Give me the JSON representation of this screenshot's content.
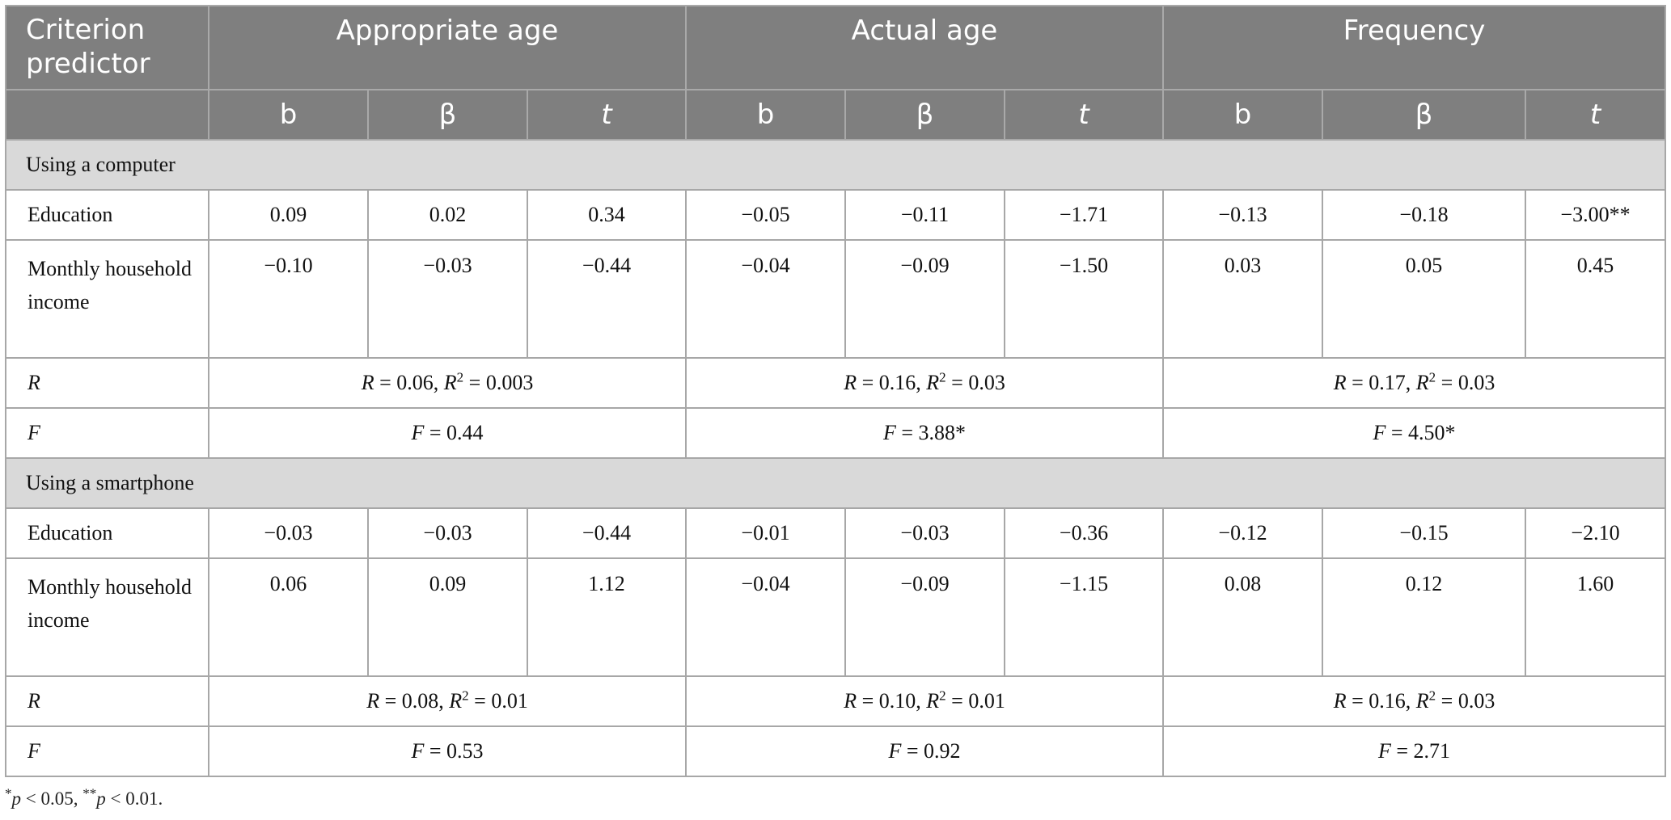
{
  "header": {
    "criterion_predictor": "Criterion predictor",
    "groups": [
      "Appropriate age",
      "Actual age",
      "Frequency"
    ],
    "subcols": [
      "b",
      "β",
      "t"
    ]
  },
  "sections": [
    {
      "title": "Using a computer",
      "rows": [
        {
          "label": "Education",
          "values": [
            "0.09",
            "0.02",
            "0.34",
            "−0.05",
            "−0.11",
            "−1.71",
            "−0.13",
            "−0.18",
            "−3.00**"
          ]
        },
        {
          "label": "Monthly household income",
          "values": [
            "−0.10",
            "−0.03",
            "−0.44",
            "−0.04",
            "−0.09",
            "−1.50",
            "0.03",
            "0.05",
            "0.45"
          ]
        }
      ],
      "R": {
        "label": "R",
        "values": [
          {
            "r": "0.06",
            "r2": "0.003"
          },
          {
            "r": "0.16",
            "r2": "0.03"
          },
          {
            "r": "0.17",
            "r2": "0.03"
          }
        ]
      },
      "F": {
        "label": "F",
        "values": [
          "0.44",
          "3.88*",
          "4.50*"
        ]
      }
    },
    {
      "title": "Using a smartphone",
      "rows": [
        {
          "label": "Education",
          "values": [
            "−0.03",
            "−0.03",
            "−0.44",
            "−0.01",
            "−0.03",
            "−0.36",
            "−0.12",
            "−0.15",
            "−2.10"
          ]
        },
        {
          "label": "Monthly household income",
          "values": [
            "0.06",
            "0.09",
            "1.12",
            "−0.04",
            "−0.09",
            "−1.15",
            "0.08",
            "0.12",
            "1.60"
          ]
        }
      ],
      "R": {
        "label": "R",
        "values": [
          {
            "r": "0.08",
            "r2": "0.01"
          },
          {
            "r": "0.10",
            "r2": "0.01"
          },
          {
            "r": "0.16",
            "r2": "0.03"
          }
        ]
      },
      "F": {
        "label": "F",
        "values": [
          "0.53",
          "0.92",
          "2.71"
        ]
      }
    }
  ],
  "footnote": {
    "p1": "0.05",
    "p2": "0.01"
  }
}
